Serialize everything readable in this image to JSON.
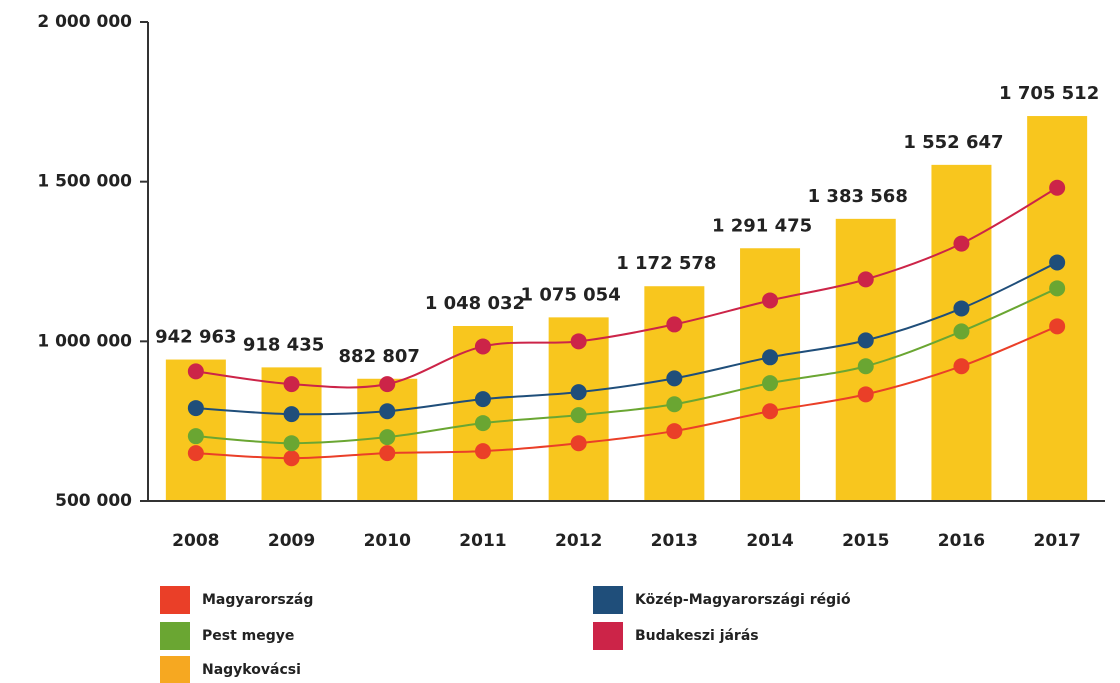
{
  "chart_data": {
    "type": "bar",
    "categories": [
      "2008",
      "2009",
      "2010",
      "2011",
      "2012",
      "2013",
      "2014",
      "2015",
      "2016",
      "2017"
    ],
    "ylim": [
      500000,
      2000000
    ],
    "yticks": [
      {
        "value": 500000,
        "label": "500 000"
      },
      {
        "value": 1000000,
        "label": "1 000 000"
      },
      {
        "value": 1500000,
        "label": "1 500 000"
      },
      {
        "value": 2000000,
        "label": "2 000 000"
      }
    ],
    "series": [
      {
        "name": "Magyarország",
        "type": "line",
        "color": "#ea3f28",
        "values": [
          650000,
          634000,
          650000,
          656000,
          681000,
          719000,
          781000,
          834000,
          922000,
          1047000
        ]
      },
      {
        "name": "Pest megye",
        "type": "line",
        "color": "#6aa632",
        "values": [
          703000,
          681000,
          700000,
          744000,
          769000,
          803000,
          869000,
          922000,
          1031000,
          1166000
        ]
      },
      {
        "name": "Közép-Magyarországi régió",
        "type": "line",
        "color": "#1f4e7a",
        "values": [
          791000,
          772000,
          781000,
          819000,
          841000,
          884000,
          950000,
          1003000,
          1103000,
          1247000
        ]
      },
      {
        "name": "Budakeszi járás",
        "type": "line",
        "color": "#cc2448",
        "values": [
          906000,
          866000,
          866000,
          984000,
          1000000,
          1053000,
          1128000,
          1194000,
          1306000,
          1481000
        ]
      },
      {
        "name": "Nagykovácsi",
        "type": "bar",
        "color": "#f8c61e",
        "legend_color": "#f6a821",
        "values": [
          942963,
          918435,
          882807,
          1048032,
          1075054,
          1172578,
          1291475,
          1383568,
          1552647,
          1705512
        ],
        "value_labels": [
          "942 963",
          "918 435",
          "882 807",
          "1 048 032",
          "1 075 054",
          "1 172 578",
          "1 291 475",
          "1 383 568",
          "1 552 647",
          "1 705 512"
        ]
      }
    ]
  }
}
